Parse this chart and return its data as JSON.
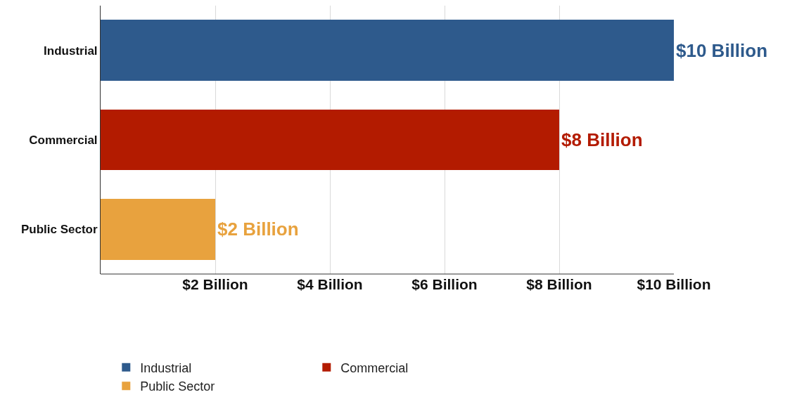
{
  "chart_data": {
    "type": "bar",
    "orientation": "horizontal",
    "stacked": true,
    "categories": [
      "Industrial",
      "Commercial",
      "Public Sector"
    ],
    "series": [
      {
        "name": "Industrial",
        "color": "#2e5a8c",
        "values": [
          10,
          null,
          null
        ],
        "value_labels": [
          "$10 Billion",
          null,
          null
        ]
      },
      {
        "name": "Commercial",
        "color": "#b31b00",
        "values": [
          null,
          8,
          null
        ],
        "value_labels": [
          null,
          "$8 Billion",
          null
        ]
      },
      {
        "name": "Public Sector",
        "color": "#e8a23e",
        "values": [
          null,
          null,
          2
        ],
        "value_labels": [
          null,
          null,
          "$2 Billion"
        ]
      }
    ],
    "xlim": [
      0,
      10
    ],
    "xticks": [
      {
        "value": 2,
        "label": "$2 Billion"
      },
      {
        "value": 4,
        "label": "$4 Billion"
      },
      {
        "value": 6,
        "label": "$6 Billion"
      },
      {
        "value": 8,
        "label": "$8 Billion"
      },
      {
        "value": 10,
        "label": "$10 Billion"
      }
    ],
    "grid": "x",
    "legend": "bottom"
  }
}
